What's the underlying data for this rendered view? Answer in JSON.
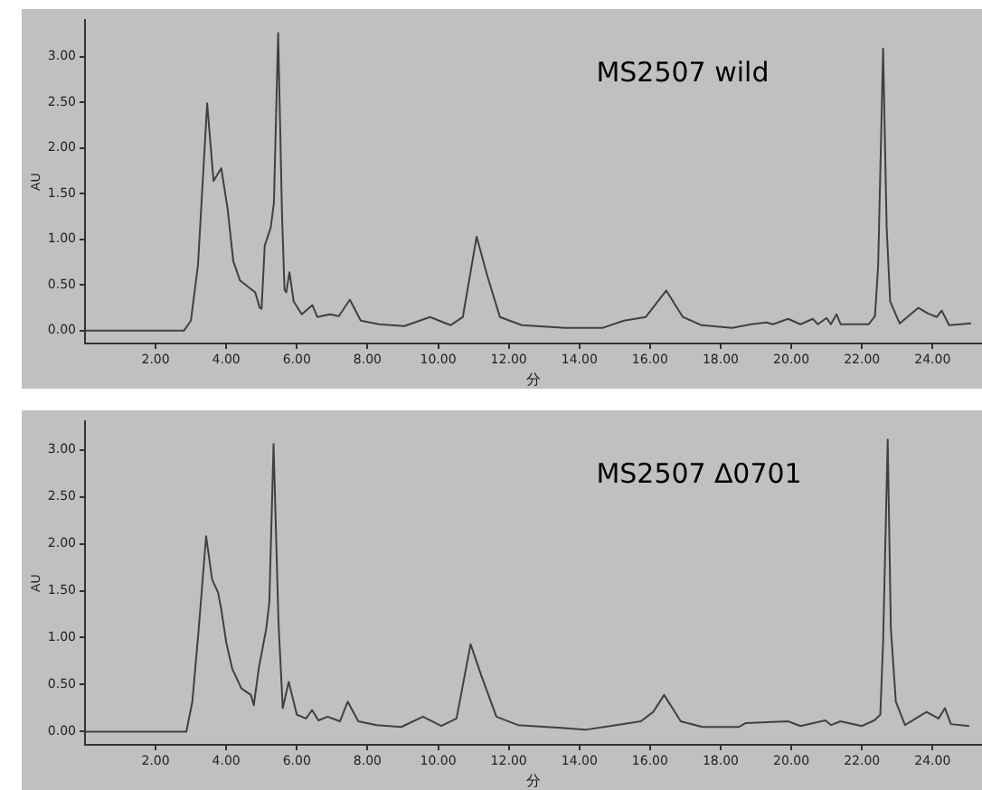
{
  "chart_data": [
    {
      "type": "line",
      "title": "MS2507 wild",
      "xlabel": "分",
      "ylabel": "AU",
      "grid": false,
      "legend": false,
      "marker": "none",
      "xlim": [
        0,
        25.4
      ],
      "ylim": [
        -0.14,
        3.4
      ],
      "xticks": [
        {
          "value": 2,
          "label": "2.00"
        },
        {
          "value": 4,
          "label": "4.00"
        },
        {
          "value": 6,
          "label": "6.00"
        },
        {
          "value": 8,
          "label": "8.00"
        },
        {
          "value": 10,
          "label": "10.00"
        },
        {
          "value": 12,
          "label": "12.00"
        },
        {
          "value": 14,
          "label": "14.00"
        },
        {
          "value": 16,
          "label": "16.00"
        },
        {
          "value": 18,
          "label": "18.00"
        },
        {
          "value": 20,
          "label": "20.00"
        },
        {
          "value": 22,
          "label": "22.00"
        },
        {
          "value": 24,
          "label": "24.00"
        }
      ],
      "yticks": [
        {
          "value": 0,
          "label": "0.00"
        },
        {
          "value": 0.5,
          "label": "0.50"
        },
        {
          "value": 1,
          "label": "1.00"
        },
        {
          "value": 1.5,
          "label": "1.50"
        },
        {
          "value": 2,
          "label": "2.00"
        },
        {
          "value": 2.5,
          "label": "2.50"
        },
        {
          "value": 3,
          "label": "3.00"
        }
      ],
      "series": [
        {
          "color": "#404040",
          "x": [
            0,
            2.8,
            3.0,
            3.2,
            3.46,
            3.64,
            3.86,
            4.04,
            4.2,
            4.39,
            4.82,
            4.95,
            5.0,
            5.09,
            5.26,
            5.35,
            5.47,
            5.58,
            5.65,
            5.7,
            5.79,
            5.91,
            6.14,
            6.44,
            6.58,
            6.93,
            7.19,
            7.5,
            7.81,
            8.33,
            9.04,
            9.77,
            10.35,
            10.7,
            11.09,
            11.4,
            11.75,
            12.37,
            13.6,
            14.65,
            15.26,
            15.88,
            16.46,
            16.93,
            17.46,
            18.33,
            18.86,
            19.3,
            19.48,
            19.91,
            20.26,
            20.61,
            20.75,
            21.0,
            21.12,
            21.28,
            21.4,
            22.19,
            22.37,
            22.46,
            22.6,
            22.7,
            22.8,
            23.07,
            23.6,
            23.86,
            24.12,
            24.26,
            24.47,
            25.09
          ],
          "values": [
            0,
            0,
            0.11,
            0.72,
            2.49,
            1.64,
            1.78,
            1.33,
            0.76,
            0.55,
            0.42,
            0.25,
            0.24,
            0.93,
            1.13,
            1.4,
            3.26,
            1.26,
            0.45,
            0.42,
            0.64,
            0.32,
            0.18,
            0.28,
            0.15,
            0.18,
            0.16,
            0.34,
            0.11,
            0.07,
            0.05,
            0.15,
            0.06,
            0.15,
            1.03,
            0.59,
            0.15,
            0.06,
            0.03,
            0.03,
            0.11,
            0.15,
            0.44,
            0.15,
            0.06,
            0.03,
            0.07,
            0.09,
            0.07,
            0.13,
            0.07,
            0.13,
            0.07,
            0.14,
            0.07,
            0.18,
            0.07,
            0.07,
            0.16,
            0.72,
            3.09,
            1.13,
            0.32,
            0.08,
            0.25,
            0.19,
            0.15,
            0.22,
            0.06,
            0.08
          ]
        }
      ]
    },
    {
      "type": "line",
      "title": "MS2507 ∆0701",
      "xlabel": "分",
      "ylabel": "AU",
      "grid": false,
      "legend": false,
      "marker": "none",
      "xlim": [
        0,
        25.4
      ],
      "ylim": [
        -0.14,
        3.3
      ],
      "xticks": [
        {
          "value": 2,
          "label": "2.00"
        },
        {
          "value": 4,
          "label": "4.00"
        },
        {
          "value": 6,
          "label": "6.00"
        },
        {
          "value": 8,
          "label": "8.00"
        },
        {
          "value": 10,
          "label": "10.00"
        },
        {
          "value": 12,
          "label": "12.00"
        },
        {
          "value": 14,
          "label": "14.00"
        },
        {
          "value": 16,
          "label": "16.00"
        },
        {
          "value": 18,
          "label": "18.00"
        },
        {
          "value": 20,
          "label": "20.00"
        },
        {
          "value": 22,
          "label": "22.00"
        },
        {
          "value": 24,
          "label": "24.00"
        }
      ],
      "yticks": [
        {
          "value": 0,
          "label": "0.00"
        },
        {
          "value": 0.5,
          "label": "0.50"
        },
        {
          "value": 1,
          "label": "1.00"
        },
        {
          "value": 1.5,
          "label": "1.50"
        },
        {
          "value": 2,
          "label": "2.00"
        },
        {
          "value": 2.5,
          "label": "2.50"
        },
        {
          "value": 3,
          "label": "3.00"
        }
      ],
      "series": [
        {
          "color": "#404040",
          "x": [
            0,
            2.87,
            3.04,
            3.22,
            3.43,
            3.6,
            3.77,
            3.86,
            4.0,
            4.17,
            4.43,
            4.7,
            4.78,
            4.92,
            5.13,
            5.22,
            5.34,
            5.48,
            5.6,
            5.77,
            6.0,
            6.26,
            6.43,
            6.61,
            6.87,
            7.22,
            7.44,
            7.74,
            8.26,
            8.96,
            9.57,
            10.09,
            10.52,
            10.92,
            11.22,
            11.65,
            12.26,
            13.48,
            14.17,
            14.87,
            15.74,
            16.09,
            16.4,
            16.87,
            17.48,
            18.52,
            18.7,
            19.91,
            20.26,
            20.96,
            21.13,
            21.39,
            22.0,
            22.35,
            22.52,
            22.6,
            22.73,
            22.82,
            22.96,
            23.22,
            23.83,
            24.17,
            24.35,
            24.52,
            25.04
          ],
          "values": [
            0,
            0,
            0.32,
            1.09,
            2.08,
            1.62,
            1.48,
            1.3,
            0.95,
            0.67,
            0.46,
            0.39,
            0.28,
            0.67,
            1.09,
            1.37,
            3.06,
            1.16,
            0.25,
            0.53,
            0.18,
            0.14,
            0.23,
            0.12,
            0.16,
            0.11,
            0.32,
            0.11,
            0.07,
            0.05,
            0.16,
            0.06,
            0.14,
            0.93,
            0.6,
            0.16,
            0.07,
            0.04,
            0.02,
            0.06,
            0.11,
            0.21,
            0.39,
            0.11,
            0.05,
            0.05,
            0.09,
            0.11,
            0.06,
            0.12,
            0.07,
            0.11,
            0.06,
            0.12,
            0.18,
            0.95,
            3.11,
            1.09,
            0.32,
            0.07,
            0.21,
            0.14,
            0.25,
            0.08,
            0.06
          ]
        }
      ]
    }
  ]
}
